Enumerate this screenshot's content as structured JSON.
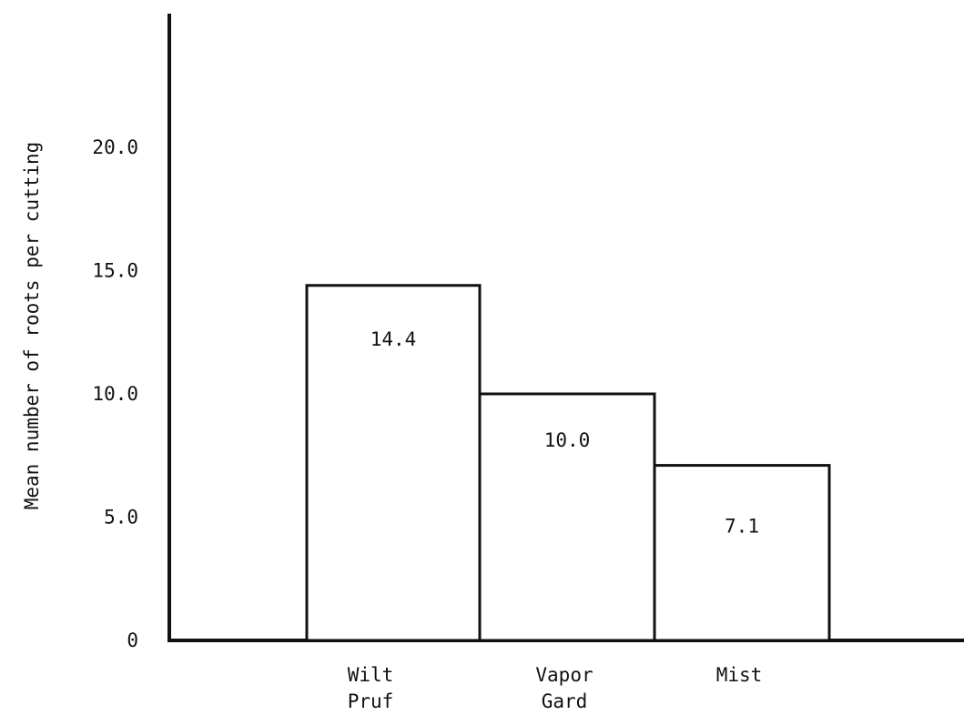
{
  "chart_data": {
    "type": "bar",
    "title": "",
    "xlabel": "",
    "ylabel": "Mean number of roots per cutting",
    "categories": [
      {
        "lines": [
          "Wilt",
          "Pruf"
        ]
      },
      {
        "lines": [
          "Vapor",
          "Gard"
        ]
      },
      {
        "lines": [
          "Mist"
        ]
      }
    ],
    "values": [
      14.4,
      10.0,
      7.1
    ],
    "data_labels": [
      "14.4",
      "10.0",
      "7.1"
    ],
    "yticks": [
      {
        "value": 0,
        "label": "0"
      },
      {
        "value": 5,
        "label": "5.0"
      },
      {
        "value": 10,
        "label": "10.0"
      },
      {
        "value": 15,
        "label": "15.0"
      },
      {
        "value": 20,
        "label": "20.0"
      }
    ],
    "ylim": [
      0,
      20
    ],
    "grid": false,
    "legend": "none",
    "colors": {
      "bar_fill": "#ffffff",
      "stroke": "#111111",
      "background": "#ffffff"
    }
  }
}
